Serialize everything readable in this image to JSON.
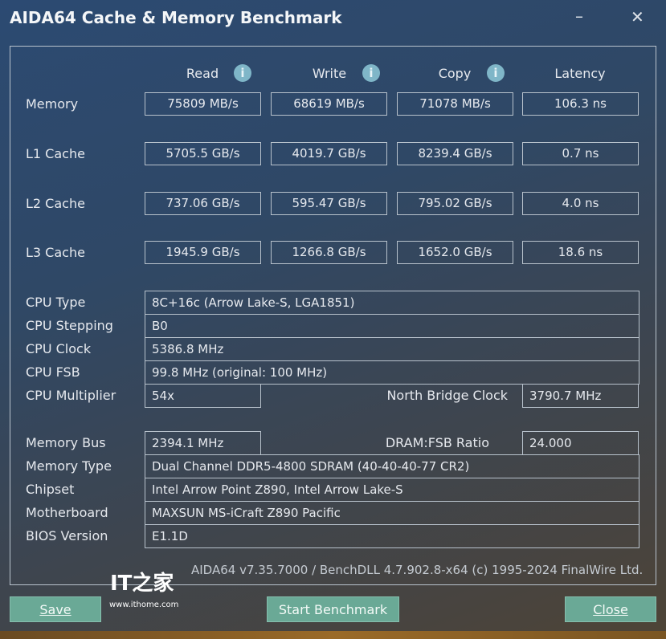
{
  "window": {
    "title": "AIDA64 Cache & Memory Benchmark",
    "minimize": "–",
    "close": "✕"
  },
  "columns": [
    "Read",
    "Write",
    "Copy",
    "Latency"
  ],
  "info_icon": "i",
  "bench": [
    {
      "label": "Memory",
      "values": [
        "75809 MB/s",
        "68619 MB/s",
        "71078 MB/s",
        "106.3 ns"
      ]
    },
    {
      "label": "L1 Cache",
      "values": [
        "5705.5 GB/s",
        "4019.7 GB/s",
        "8239.4 GB/s",
        "0.7 ns"
      ]
    },
    {
      "label": "L2 Cache",
      "values": [
        "737.06 GB/s",
        "595.47 GB/s",
        "795.02 GB/s",
        "4.0 ns"
      ]
    },
    {
      "label": "L3 Cache",
      "values": [
        "1945.9 GB/s",
        "1266.8 GB/s",
        "1652.0 GB/s",
        "18.6 ns"
      ]
    }
  ],
  "cpu": {
    "type": {
      "label": "CPU Type",
      "value": "8C+16c   (Arrow Lake-S, LGA1851)"
    },
    "stepping": {
      "label": "CPU Stepping",
      "value": "B0"
    },
    "clock": {
      "label": "CPU Clock",
      "value": "5386.8 MHz"
    },
    "fsb": {
      "label": "CPU FSB",
      "value": "99.8 MHz  (original: 100 MHz)"
    },
    "multiplier": {
      "label": "CPU Multiplier",
      "value": "54x"
    },
    "nb_clock": {
      "label": "North Bridge Clock",
      "value": "3790.7 MHz"
    }
  },
  "memory": {
    "bus": {
      "label": "Memory Bus",
      "value": "2394.1 MHz"
    },
    "ratio": {
      "label": "DRAM:FSB Ratio",
      "value": "24.000"
    },
    "type": {
      "label": "Memory Type",
      "value": "Dual Channel DDR5-4800 SDRAM  (40-40-40-77 CR2)"
    },
    "chipset": {
      "label": "Chipset",
      "value": "Intel Arrow Point Z890, Intel Arrow Lake-S"
    },
    "motherboard": {
      "label": "Motherboard",
      "value": "MAXSUN MS-iCraft Z890 Pacific"
    },
    "bios": {
      "label": "BIOS Version",
      "value": "E1.1D"
    }
  },
  "footer": "AIDA64 v7.35.7000 / BenchDLL 4.7.902.8-x64  (c) 1995-2024 FinalWire Ltd.",
  "watermark": {
    "logo": "IT之家",
    "url": "www.ithome.com"
  },
  "buttons": {
    "save": "Save",
    "start": "Start Benchmark",
    "close": "Close"
  },
  "colors": {
    "button": "#6aa996",
    "info": "#7fb6c8"
  }
}
